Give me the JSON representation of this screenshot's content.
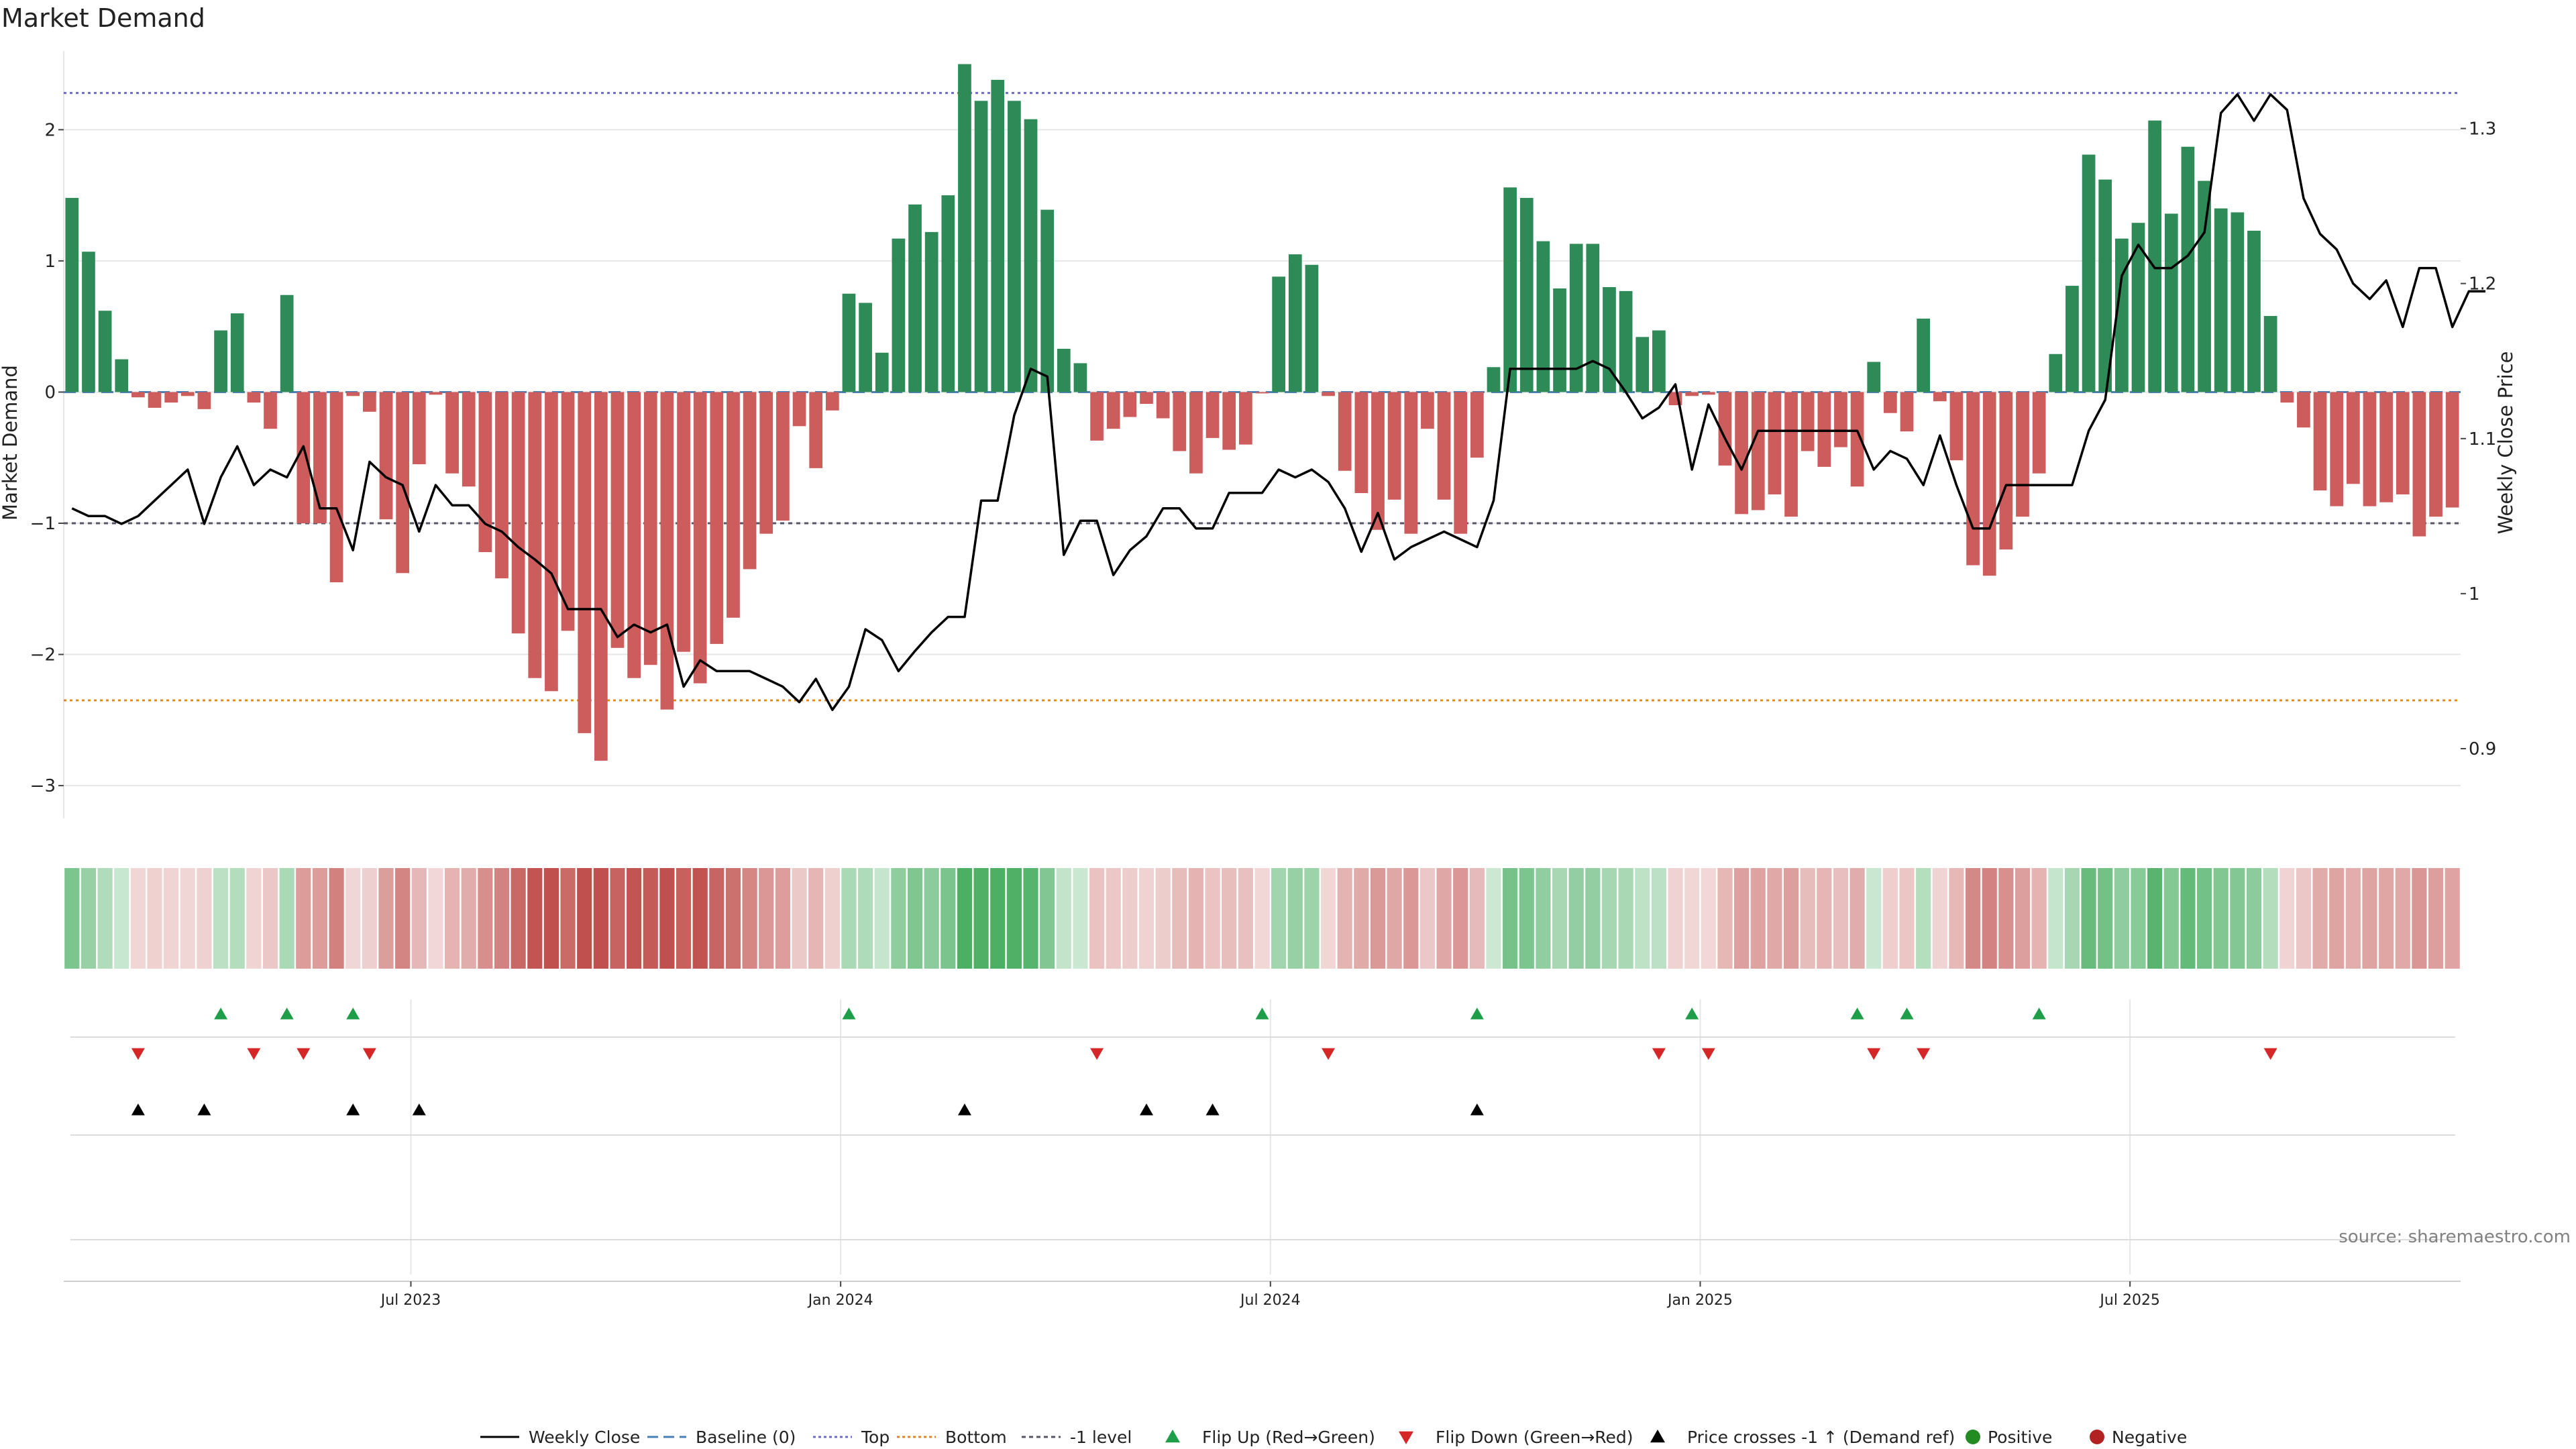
{
  "chart_data": {
    "type": "bar",
    "title": "Market Demand",
    "ylabel": "Market Demand",
    "y2label": "Weekly Close Price",
    "ylim": [
      -3.25,
      2.6
    ],
    "y2lim": [
      0.855,
      1.35
    ],
    "yticks": [
      "2",
      "1",
      "0",
      "−1",
      "−2",
      "−3"
    ],
    "y2ticks": [
      "1.3",
      "1.2",
      "1.1",
      "1",
      "0.9"
    ],
    "xticks": [
      "Jul 2023",
      "Jan 2024",
      "Jul 2024",
      "Jan 2025",
      "Jul 2025"
    ],
    "reference_lines": {
      "top": 2.28,
      "bottom": -2.35,
      "baseline": 0,
      "minus_one": -1
    },
    "colors": {
      "positive": "#2e8b57",
      "negative": "#cd5c5c",
      "close": "#000000",
      "top": "#6b6bcc",
      "bottom": "#e08a1e",
      "minus_one": "#555566",
      "baseline": "#4a7fb5",
      "flip_up": "#1e9e48",
      "flip_down": "#d62728",
      "cross": "#000000",
      "grid": "#e6e6e6",
      "legend_pos": "#228b22",
      "legend_neg": "#b22222"
    },
    "series": [
      {
        "name": "Market Demand",
        "values": [
          1.48,
          1.07,
          0.62,
          0.25,
          -0.04,
          -0.12,
          -0.08,
          -0.03,
          -0.13,
          0.47,
          0.6,
          -0.08,
          -0.28,
          0.74,
          -1.0,
          -1.0,
          -1.45,
          -0.03,
          -0.15,
          -0.97,
          -1.38,
          -0.55,
          -0.02,
          -0.62,
          -0.72,
          -1.22,
          -1.42,
          -1.84,
          -2.18,
          -2.28,
          -1.82,
          -2.6,
          -2.81,
          -1.95,
          -2.18,
          -2.08,
          -2.42,
          -1.98,
          -2.22,
          -1.92,
          -1.72,
          -1.35,
          -1.08,
          -0.98,
          -0.26,
          -0.58,
          -0.14,
          0.75,
          0.68,
          0.3,
          1.17,
          1.43,
          1.22,
          1.5,
          2.5,
          2.22,
          2.38,
          2.22,
          2.08,
          1.39,
          0.33,
          0.22,
          -0.37,
          -0.28,
          -0.19,
          -0.09,
          -0.2,
          -0.45,
          -0.62,
          -0.35,
          -0.44,
          -0.4,
          -0.01,
          0.88,
          1.05,
          0.97,
          -0.03,
          -0.6,
          -0.77,
          -1.05,
          -0.82,
          -1.08,
          -0.28,
          -0.82,
          -1.08,
          -0.5,
          0.19,
          1.56,
          1.48,
          1.15,
          0.79,
          1.13,
          1.13,
          0.8,
          0.77,
          0.42,
          0.47,
          -0.1,
          -0.03,
          -0.02,
          -0.56,
          -0.93,
          -0.9,
          -0.78,
          -0.95,
          -0.45,
          -0.57,
          -0.42,
          -0.72,
          0.23,
          -0.16,
          -0.3,
          0.56,
          -0.07,
          -0.52,
          -1.32,
          -1.4,
          -1.2,
          -0.95,
          -0.62,
          0.29,
          0.81,
          1.81,
          1.62,
          1.17,
          1.29,
          2.07,
          1.36,
          1.87,
          1.61,
          1.4,
          1.37,
          1.23,
          0.58,
          -0.08,
          -0.27,
          -0.75,
          -0.87,
          -0.7,
          -0.87,
          -0.84,
          -0.78,
          -1.1,
          -0.95,
          -0.88
        ]
      },
      {
        "name": "Weekly Close",
        "axis": "right",
        "values": [
          1.055,
          1.05,
          1.05,
          1.045,
          1.05,
          1.06,
          1.07,
          1.08,
          1.045,
          1.075,
          1.095,
          1.07,
          1.08,
          1.075,
          1.095,
          1.055,
          1.055,
          1.028,
          1.085,
          1.075,
          1.07,
          1.04,
          1.07,
          1.057,
          1.057,
          1.045,
          1.04,
          1.03,
          1.022,
          1.013,
          0.99,
          0.99,
          0.99,
          0.972,
          0.98,
          0.975,
          0.98,
          0.94,
          0.957,
          0.95,
          0.95,
          0.95,
          0.945,
          0.94,
          0.93,
          0.945,
          0.925,
          0.94,
          0.977,
          0.97,
          0.95,
          0.963,
          0.975,
          0.985,
          0.985,
          1.06,
          1.06,
          1.115,
          1.145,
          1.14,
          1.025,
          1.047,
          1.047,
          1.012,
          1.028,
          1.037,
          1.055,
          1.055,
          1.042,
          1.042,
          1.065,
          1.065,
          1.065,
          1.08,
          1.075,
          1.08,
          1.072,
          1.055,
          1.027,
          1.052,
          1.022,
          1.03,
          1.035,
          1.04,
          1.035,
          1.03,
          1.06,
          1.145,
          1.145,
          1.145,
          1.145,
          1.145,
          1.15,
          1.145,
          1.13,
          1.113,
          1.12,
          1.135,
          1.08,
          1.122,
          1.1,
          1.08,
          1.105,
          1.105,
          1.105,
          1.105,
          1.105,
          1.105,
          1.105,
          1.08,
          1.092,
          1.087,
          1.07,
          1.102,
          1.07,
          1.042,
          1.042,
          1.07,
          1.07,
          1.07,
          1.07,
          1.07,
          1.105,
          1.125,
          1.205,
          1.225,
          1.21,
          1.21,
          1.218,
          1.233,
          1.31,
          1.322,
          1.305,
          1.322,
          1.312,
          1.255,
          1.232,
          1.222,
          1.2,
          1.19,
          1.202,
          1.172,
          1.21,
          1.21,
          1.172,
          1.195,
          1.195
        ]
      },
      {
        "name": "Flip Up (Red→Green)",
        "bar_index": [
          9,
          13,
          17,
          47,
          72,
          85,
          98,
          108,
          111,
          119
        ]
      },
      {
        "name": "Flip Down (Green→Red)",
        "bar_index": [
          4,
          11,
          14,
          18,
          62,
          76,
          96,
          99,
          109,
          112,
          133
        ]
      },
      {
        "name": "Price crosses -1 ↑ (Demand ref)",
        "bar_index": [
          4,
          8,
          17,
          21,
          54,
          65,
          69,
          85
        ]
      }
    ],
    "legend": [
      "Weekly Close",
      "Baseline (0)",
      "Top",
      "Bottom",
      "-1 level",
      "Flip Up (Red→Green)",
      "Flip Down (Green→Red)",
      "Price crosses -1 ↑ (Demand ref)",
      "Positive",
      "Negative"
    ],
    "legend_placement": "bottom-center",
    "source": "source: sharemaestro.com"
  }
}
